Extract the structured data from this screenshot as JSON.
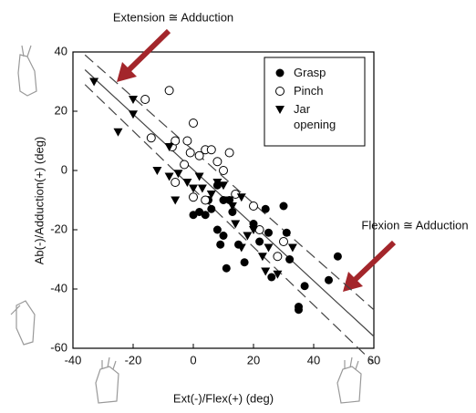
{
  "chart_data": {
    "type": "scatter",
    "xlabel": "Ext(-)/Flex(+) (deg)",
    "ylabel": "Ab(-)/Adduction(+) (deg)",
    "xlim": [
      -40,
      60
    ],
    "xticks": [
      -40,
      -20,
      0,
      20,
      40,
      60
    ],
    "ylim": [
      -60,
      40
    ],
    "yticks": [
      -60,
      -40,
      -20,
      0,
      20,
      40
    ],
    "legend": "upper right",
    "annotations": [
      {
        "text": "Extension ≅ Adduction",
        "color": "#a3262b"
      },
      {
        "text": "Flexion ≅ Adduction",
        "color": "#a3262b"
      }
    ],
    "series": [
      {
        "name": "Grasp",
        "marker": "filled-circle",
        "color": "#000000",
        "x": [
          0,
          4,
          6,
          8,
          10,
          12,
          13,
          8,
          10,
          9,
          11,
          15,
          17,
          20,
          22,
          24,
          25,
          30,
          31,
          32,
          35,
          35,
          37,
          45,
          48,
          26,
          2,
          5
        ],
        "y": [
          -15,
          -15,
          -13,
          -5,
          -10,
          -10,
          -14,
          -20,
          -22,
          -25,
          -33,
          -25,
          -31,
          -18,
          -24,
          -13,
          -21,
          -12,
          -21,
          -30,
          -46,
          -47,
          -39,
          -37,
          -29,
          -36,
          -14,
          -10
        ]
      },
      {
        "name": "Pinch",
        "marker": "open-circle",
        "color": "#000000",
        "x": [
          -8,
          -16,
          -14,
          -7,
          -6,
          -2,
          -3,
          0,
          -1,
          2,
          4,
          6,
          8,
          12,
          10,
          0,
          -6,
          4,
          14,
          20,
          28,
          30,
          22
        ],
        "y": [
          27,
          24,
          11,
          8,
          10,
          10,
          2,
          16,
          6,
          5,
          7,
          7,
          3,
          6,
          0,
          -9,
          -4,
          -10,
          -8,
          -12,
          -29,
          -24,
          -20
        ]
      },
      {
        "name": "Jar opening",
        "marker": "down-triangle",
        "color": "#000000",
        "x": [
          -33,
          -20,
          -20,
          -25,
          -8,
          -12,
          -5,
          -6,
          -2,
          0,
          2,
          3,
          6,
          8,
          12,
          13,
          14,
          16,
          18,
          16,
          20,
          23,
          25,
          24,
          33,
          28,
          -8,
          10
        ],
        "y": [
          30,
          24,
          19,
          13,
          8,
          0,
          -1,
          -10,
          -4,
          -6,
          -2,
          -6,
          -8,
          -4,
          -10,
          -12,
          -18,
          -9,
          -22,
          -26,
          -20,
          -29,
          -26,
          -34,
          -26,
          -35,
          -2,
          -5
        ]
      }
    ],
    "fit_lines": [
      {
        "style": "solid",
        "x": [
          -36,
          60
        ],
        "y": [
          34,
          -56
        ]
      },
      {
        "style": "dashed",
        "x": [
          -36,
          60
        ],
        "y": [
          39,
          -47
        ]
      },
      {
        "style": "dashed",
        "x": [
          -36,
          60
        ],
        "y": [
          29,
          -65
        ]
      }
    ]
  }
}
